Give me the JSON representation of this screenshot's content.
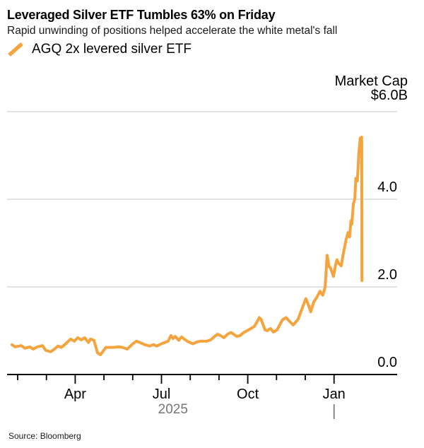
{
  "header": {
    "title": "Leveraged Silver ETF Tumbles 63% on Friday",
    "subtitle": "Rapid unwinding of positions helped accelerate the white metal's fall"
  },
  "legend": {
    "label": "AGQ 2x levered silver ETF"
  },
  "footer": {
    "source": "Source: Bloomberg"
  },
  "chart_data": {
    "type": "line",
    "title": "Leveraged Silver ETF Tumbles 63% on Friday",
    "subtitle": "Rapid unwinding of positions helped accelerate the white metal's fall",
    "legend_position": "top-left",
    "grid": true,
    "colors": {
      "line": "#F5A33C",
      "grid": "#D8D8D8",
      "axis": "#000000",
      "year_label": "#757575",
      "year_divider": "#666666",
      "tick_text": "#000000"
    },
    "y_axis": {
      "title": "Market Cap",
      "unit": "$B",
      "range": [
        0,
        6
      ],
      "ticks": [
        {
          "v": 6,
          "label": "$6.0B"
        },
        {
          "v": 4,
          "label": "4.0"
        },
        {
          "v": 2,
          "label": "2.0"
        },
        {
          "v": 0,
          "label": "0.0"
        }
      ]
    },
    "x_axis": {
      "unit": "months since 2025-01-01",
      "year_label": "2025",
      "year_divider_m": 12,
      "ticks": [
        {
          "m": 1,
          "label": ""
        },
        {
          "m": 2,
          "label": ""
        },
        {
          "m": 3,
          "label": "Apr"
        },
        {
          "m": 4,
          "label": ""
        },
        {
          "m": 5,
          "label": ""
        },
        {
          "m": 6,
          "label": "Jul"
        },
        {
          "m": 7,
          "label": ""
        },
        {
          "m": 8,
          "label": ""
        },
        {
          "m": 9,
          "label": "Oct"
        },
        {
          "m": 10,
          "label": ""
        },
        {
          "m": 11,
          "label": ""
        },
        {
          "m": 12,
          "label": "Jan"
        }
      ]
    },
    "series": [
      {
        "name": "AGQ 2x levered silver ETF",
        "color": "#F5A33C",
        "points": [
          [
            0.8,
            0.68
          ],
          [
            0.91,
            0.63
          ],
          [
            1.12,
            0.66
          ],
          [
            1.25,
            0.6
          ],
          [
            1.42,
            0.63
          ],
          [
            1.54,
            0.58
          ],
          [
            1.69,
            0.63
          ],
          [
            1.86,
            0.66
          ],
          [
            1.98,
            0.55
          ],
          [
            2.15,
            0.52
          ],
          [
            2.28,
            0.58
          ],
          [
            2.4,
            0.65
          ],
          [
            2.52,
            0.62
          ],
          [
            2.67,
            0.7
          ],
          [
            2.84,
            0.81
          ],
          [
            2.97,
            0.76
          ],
          [
            3.09,
            0.84
          ],
          [
            3.21,
            0.79
          ],
          [
            3.33,
            0.84
          ],
          [
            3.46,
            0.73
          ],
          [
            3.53,
            0.81
          ],
          [
            3.65,
            0.78
          ],
          [
            3.78,
            0.49
          ],
          [
            3.88,
            0.45
          ],
          [
            4.07,
            0.62
          ],
          [
            4.32,
            0.62
          ],
          [
            4.51,
            0.63
          ],
          [
            4.64,
            0.62
          ],
          [
            4.81,
            0.58
          ],
          [
            5.0,
            0.7
          ],
          [
            5.13,
            0.76
          ],
          [
            5.25,
            0.73
          ],
          [
            5.42,
            0.68
          ],
          [
            5.59,
            0.65
          ],
          [
            5.72,
            0.68
          ],
          [
            5.84,
            0.65
          ],
          [
            5.99,
            0.7
          ],
          [
            6.23,
            0.76
          ],
          [
            6.33,
            0.89
          ],
          [
            6.4,
            0.82
          ],
          [
            6.48,
            0.87
          ],
          [
            6.6,
            0.78
          ],
          [
            6.7,
            0.86
          ],
          [
            6.77,
            0.82
          ],
          [
            6.9,
            0.76
          ],
          [
            7.09,
            0.7
          ],
          [
            7.22,
            0.74
          ],
          [
            7.34,
            0.76
          ],
          [
            7.58,
            0.76
          ],
          [
            7.71,
            0.79
          ],
          [
            7.83,
            0.86
          ],
          [
            7.95,
            0.92
          ],
          [
            8.05,
            0.89
          ],
          [
            8.17,
            0.84
          ],
          [
            8.3,
            0.92
          ],
          [
            8.42,
            0.96
          ],
          [
            8.62,
            0.87
          ],
          [
            8.74,
            0.89
          ],
          [
            8.86,
            0.96
          ],
          [
            8.98,
            1.0
          ],
          [
            9.11,
            1.05
          ],
          [
            9.23,
            1.1
          ],
          [
            9.33,
            1.21
          ],
          [
            9.4,
            1.3
          ],
          [
            9.47,
            1.25
          ],
          [
            9.6,
            1.02
          ],
          [
            9.67,
            1.0
          ],
          [
            9.79,
            1.05
          ],
          [
            9.89,
            0.97
          ],
          [
            10.02,
            1.02
          ],
          [
            10.14,
            1.17
          ],
          [
            10.21,
            1.25
          ],
          [
            10.33,
            1.3
          ],
          [
            10.46,
            1.21
          ],
          [
            10.58,
            1.13
          ],
          [
            10.75,
            1.26
          ],
          [
            10.88,
            1.49
          ],
          [
            11.02,
            1.73
          ],
          [
            11.12,
            1.57
          ],
          [
            11.19,
            1.43
          ],
          [
            11.29,
            1.65
          ],
          [
            11.39,
            1.75
          ],
          [
            11.51,
            1.9
          ],
          [
            11.61,
            1.81
          ],
          [
            11.69,
            2.0
          ],
          [
            11.76,
            2.72
          ],
          [
            11.83,
            2.46
          ],
          [
            11.88,
            2.43
          ],
          [
            11.98,
            2.24
          ],
          [
            12.05,
            2.49
          ],
          [
            12.1,
            2.62
          ],
          [
            12.17,
            2.53
          ],
          [
            12.25,
            2.48
          ],
          [
            12.32,
            2.75
          ],
          [
            12.42,
            3.08
          ],
          [
            12.49,
            3.24
          ],
          [
            12.54,
            3.14
          ],
          [
            12.59,
            3.51
          ],
          [
            12.62,
            3.43
          ],
          [
            12.67,
            3.89
          ],
          [
            12.72,
            4.0
          ],
          [
            12.76,
            4.48
          ],
          [
            12.81,
            4.42
          ],
          [
            12.86,
            5.02
          ],
          [
            12.91,
            5.39
          ],
          [
            12.96,
            5.42
          ],
          [
            12.97,
            2.14
          ]
        ]
      }
    ]
  }
}
